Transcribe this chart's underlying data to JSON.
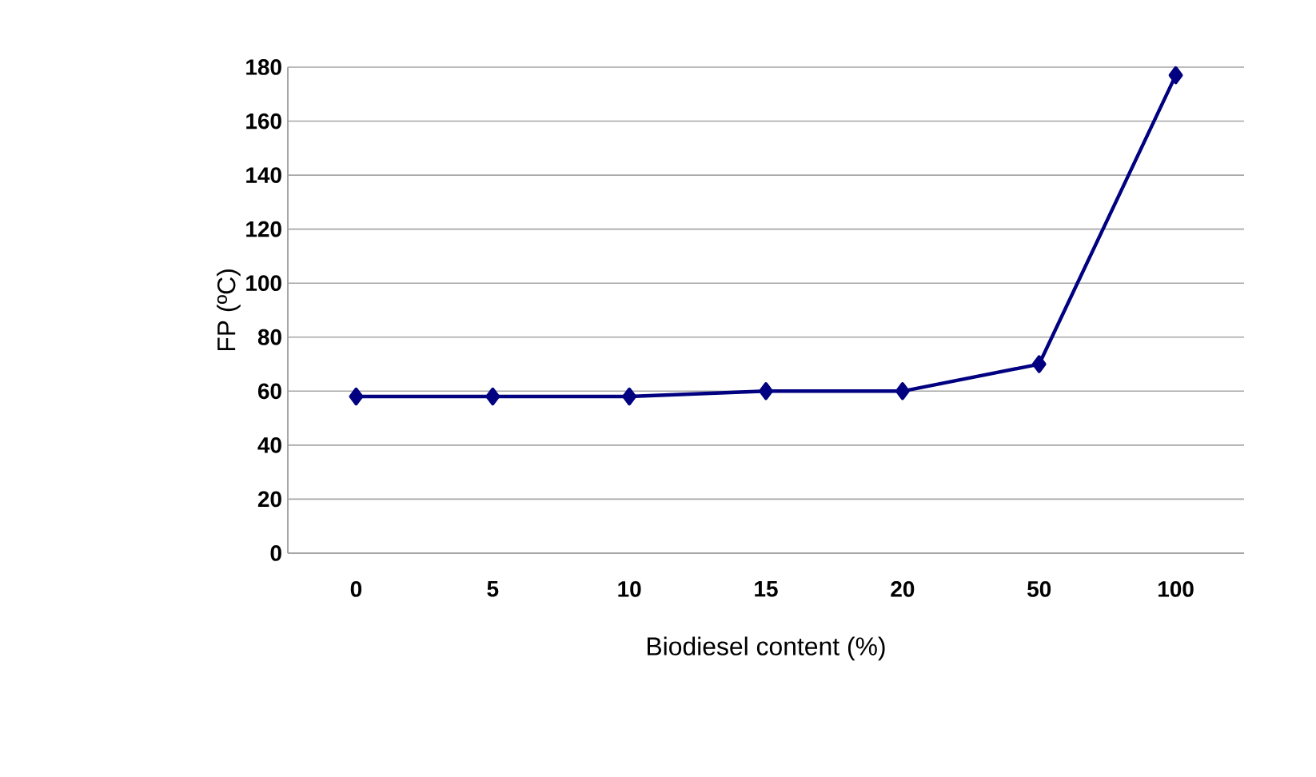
{
  "chart_data": {
    "type": "line",
    "xlabel": "Biodiesel content (%)",
    "ylabel": "FP (ºC)",
    "categories": [
      "0",
      "5",
      "10",
      "15",
      "20",
      "50",
      "100"
    ],
    "series": [
      {
        "color": "#000080",
        "values": [
          58,
          58,
          58,
          60,
          60,
          70,
          177
        ]
      }
    ],
    "ylim": [
      0,
      180
    ],
    "yticks": [
      0,
      20,
      40,
      60,
      80,
      100,
      120,
      140,
      160,
      180
    ],
    "grid": "y",
    "marker": "diamond",
    "line_style": "solid"
  }
}
